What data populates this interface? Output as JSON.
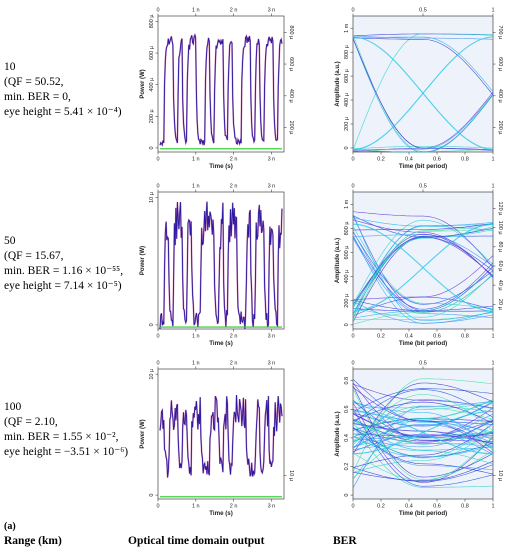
{
  "figure_label": "(a)",
  "column_headers": {
    "range": "Range (km)",
    "optical": "Optical time domain output",
    "ber": "BER"
  },
  "rows": [
    {
      "range": "10",
      "qf": "(QF = 50.52,",
      "min_ber": "min. BER = 0,",
      "eye_height": "eye height = 5.41 × 10⁻⁴)"
    },
    {
      "range": "50",
      "qf": "(QF = 15.67,",
      "min_ber": "min. BER = 1.16 × 10⁻⁵⁵,",
      "eye_height": "eye height = 7.14 × 10⁻⁵)"
    },
    {
      "range": "100",
      "qf": "(QF = 2.10,",
      "min_ber": "min. BER = 1.55 × 10⁻²,",
      "eye_height": "eye height = −3.51 × 10⁻⁶)"
    }
  ],
  "chart_data": [
    {
      "type": "line",
      "panel": "time-10km",
      "xlabel": "Time (s)",
      "ylabel": "Power (W)",
      "x_ticks": [
        "0",
        "1 n",
        "2 n",
        "3 n"
      ],
      "xlim": [
        0,
        3.2
      ],
      "y_ticks_left": [
        "0",
        "200 µ",
        "400 µ",
        "600 µ",
        "800 µ"
      ],
      "y_ticks_right": [
        "200 µ",
        "400 µ",
        "600 µ",
        "800 µ"
      ],
      "ylim": [
        0,
        850
      ],
      "bits": [
        0,
        1,
        1,
        0,
        1,
        0,
        1,
        1,
        0,
        0,
        1,
        0,
        1,
        1,
        0,
        1,
        0,
        0,
        1,
        1,
        0,
        1,
        0,
        1,
        1,
        0,
        1
      ],
      "high": 700,
      "low": 60,
      "noise": 70,
      "baseline": 20,
      "colors": {
        "signal": "#2a1aa0",
        "signal_alt": "#b0207a",
        "baseline": "#22cc22"
      }
    },
    {
      "type": "line",
      "panel": "time-50km",
      "xlabel": "Time (s)",
      "ylabel": "Power (W)",
      "x_ticks": [
        "0",
        "1 n",
        "2 n",
        "3 n"
      ],
      "xlim": [
        0,
        3.2
      ],
      "y_ticks_left": [
        "0",
        "10 µ"
      ],
      "ylim": [
        0,
        14.5
      ],
      "bits": [
        0,
        1,
        0,
        1,
        1,
        0,
        1,
        0,
        0,
        1,
        1,
        1,
        0,
        1,
        0,
        1,
        1,
        0,
        0,
        1,
        0,
        1,
        1,
        0,
        1,
        0,
        1
      ],
      "high": 11.5,
      "low": 0.8,
      "noise": 4.2,
      "baseline": 0.2,
      "colors": {
        "signal": "#2a1aa0",
        "signal_alt": "#b0207a",
        "baseline": "#22cc22"
      }
    },
    {
      "type": "line",
      "panel": "time-100km",
      "xlabel": "Time (s)",
      "ylabel": "Power (W)",
      "x_ticks": [
        "0",
        "1 n",
        "2 n",
        "3 n"
      ],
      "xlim": [
        0,
        3.2
      ],
      "y_ticks_left": [
        "0",
        "10 µ"
      ],
      "y_ticks_right": [
        "10 µ"
      ],
      "ylim": [
        0,
        18
      ],
      "bits": [
        1,
        0,
        1,
        1,
        0,
        1,
        0,
        1,
        1,
        0,
        0,
        1,
        1,
        0,
        1,
        0,
        1,
        1,
        1,
        0,
        0,
        1,
        0,
        1,
        0,
        1,
        1
      ],
      "high": 12,
      "low": 4,
      "noise": 5,
      "baseline": 0.3,
      "colors": {
        "signal": "#2a1aa0",
        "signal_alt": "#b0207a",
        "baseline": "#22cc22"
      }
    },
    {
      "type": "line",
      "panel": "eye-10km",
      "xlabel": "Time (bit period)",
      "ylabel": "Amplitude (a.u.)",
      "x_ticks": [
        "0",
        "0.2",
        "0.4",
        "0.6",
        "0.8",
        "1"
      ],
      "x_ticks_top": [
        "0",
        "0.5",
        "1"
      ],
      "xlim": [
        0,
        1
      ],
      "y_ticks_left": [
        "0",
        "200 µ",
        "400 µ",
        "600 µ",
        "800 µ",
        "1 m"
      ],
      "y_ticks_right": [
        "200 µ",
        "400 µ",
        "600 µ",
        "700 µ"
      ],
      "ylim": [
        0,
        1.1
      ],
      "high": 0.93,
      "low": 0.02,
      "spread": 0.03,
      "crossing": 0.12,
      "traces": 14
    },
    {
      "type": "line",
      "panel": "eye-50km",
      "xlabel": "Time (bit period)",
      "ylabel": "Amplitude (a.u.)",
      "x_ticks": [
        "0",
        "0.2",
        "0.4",
        "0.6",
        "0.8",
        "1"
      ],
      "x_ticks_top": [
        "0",
        "0.5",
        "1"
      ],
      "xlim": [
        0,
        1
      ],
      "y_ticks_left": [
        "0",
        "200 µ",
        "400 µ",
        "600 µ",
        "800 µ",
        "1 m"
      ],
      "y_ticks_right": [
        "20 µ",
        "40 µ",
        "60 µ",
        "80 µ",
        "100 µ",
        "120 µ"
      ],
      "ylim": [
        0,
        1.15
      ],
      "high": 0.88,
      "low": 0.15,
      "spread": 0.12,
      "crossing": 0.19,
      "traces": 34
    },
    {
      "type": "line",
      "panel": "eye-100km",
      "xlabel": "Time (bit period)",
      "ylabel": "Amplitude (a.u.)",
      "x_ticks": [
        "0",
        "0.2",
        "0.4",
        "0.6",
        "0.8",
        "1"
      ],
      "x_ticks_top": [
        "0",
        "0.5",
        "1"
      ],
      "xlim": [
        0,
        1
      ],
      "y_ticks_left": [
        "0",
        "0.2",
        "0.4",
        "0.6",
        "0.8"
      ],
      "y_ticks_right": [
        "10 µ"
      ],
      "ylim": [
        -0.02,
        0.9
      ],
      "high": 0.6,
      "low": 0.3,
      "spread": 0.25,
      "crossing": 0.3,
      "traces": 60
    }
  ]
}
